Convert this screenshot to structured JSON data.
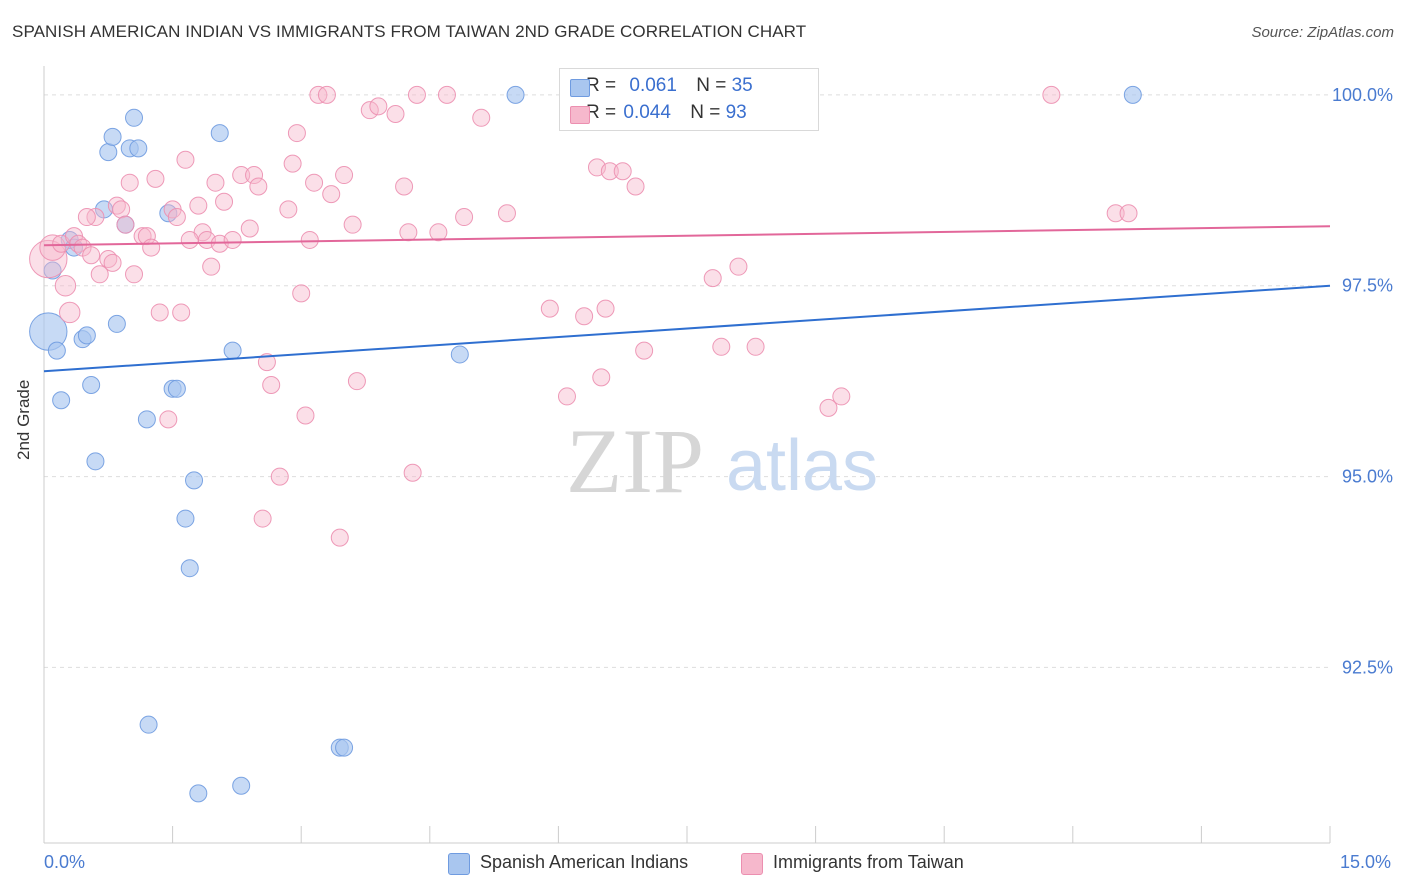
{
  "title": "SPANISH AMERICAN INDIAN VS IMMIGRANTS FROM TAIWAN 2ND GRADE CORRELATION CHART",
  "source": "Source: ZipAtlas.com",
  "watermark": {
    "zip": "ZIP",
    "atlas": "atlas"
  },
  "legend_top": {
    "rows": [
      {
        "r_label": "R =",
        "r_value": "0.061",
        "n_label": "N =",
        "n_value": "35"
      },
      {
        "r_label": "R =",
        "r_value": "0.044",
        "n_label": "N =",
        "n_value": "93"
      }
    ]
  },
  "colors": {
    "blue_fill": "#a9c6ef",
    "blue_stroke": "#6f9be0",
    "blue_line": "#2f6fd0",
    "pink_fill": "#f6b8cc",
    "pink_stroke": "#ec8fb0",
    "pink_line": "#e2679a",
    "tick_text": "#4a7bd0",
    "grid": "#dddddd"
  },
  "chart_data": {
    "type": "scatter",
    "title": "SPANISH AMERICAN INDIAN VS IMMIGRANTS FROM TAIWAN 2ND GRADE CORRELATION CHART",
    "xlabel": "",
    "ylabel": "2nd Grade",
    "xlim": [
      0,
      15
    ],
    "ylim": [
      90.2,
      100.3
    ],
    "x_tick_labels": [
      "0.0%",
      "15.0%"
    ],
    "y_ticks": [
      92.5,
      95.0,
      97.5,
      100.0
    ],
    "y_tick_labels": [
      "92.5%",
      "95.0%",
      "97.5%",
      "100.0%"
    ],
    "series": [
      {
        "name": "Spanish American Indians",
        "color": "blue",
        "r": 0.061,
        "n": 35,
        "trend": {
          "x": [
            0,
            15
          ],
          "y": [
            96.38,
            97.5
          ]
        },
        "points": [
          [
            0.05,
            96.9,
            2.2
          ],
          [
            0.1,
            97.7,
            1
          ],
          [
            0.15,
            96.65,
            1
          ],
          [
            0.2,
            96.0,
            1
          ],
          [
            0.3,
            98.1,
            1
          ],
          [
            0.35,
            98.0,
            1
          ],
          [
            0.45,
            96.8,
            1
          ],
          [
            0.5,
            96.85,
            1
          ],
          [
            0.55,
            96.2,
            1
          ],
          [
            0.6,
            95.2,
            1
          ],
          [
            0.7,
            98.5,
            1
          ],
          [
            0.75,
            99.25,
            1
          ],
          [
            0.8,
            99.45,
            1
          ],
          [
            0.85,
            97.0,
            1
          ],
          [
            0.95,
            98.3,
            1
          ],
          [
            1.0,
            99.3,
            1
          ],
          [
            1.05,
            99.7,
            1
          ],
          [
            1.1,
            99.3,
            1
          ],
          [
            1.2,
            95.75,
            1
          ],
          [
            1.22,
            91.75,
            1
          ],
          [
            1.45,
            98.45,
            1
          ],
          [
            1.5,
            96.15,
            1
          ],
          [
            1.55,
            96.15,
            1
          ],
          [
            1.65,
            94.45,
            1
          ],
          [
            1.7,
            93.8,
            1
          ],
          [
            1.75,
            94.95,
            1
          ],
          [
            1.8,
            90.85,
            1
          ],
          [
            2.05,
            99.5,
            1
          ],
          [
            2.2,
            96.65,
            1
          ],
          [
            2.3,
            90.95,
            1
          ],
          [
            3.45,
            91.45,
            1
          ],
          [
            3.5,
            91.45,
            1
          ],
          [
            4.85,
            96.6,
            1
          ],
          [
            5.5,
            100.0,
            1
          ],
          [
            12.7,
            100.0,
            1
          ]
        ]
      },
      {
        "name": "Immigrants from Taiwan",
        "color": "pink",
        "r": 0.044,
        "n": 93,
        "trend": {
          "x": [
            0,
            15
          ],
          "y": [
            98.03,
            98.28
          ]
        },
        "points": [
          [
            0.05,
            97.85,
            2.2
          ],
          [
            0.1,
            98.0,
            1.5
          ],
          [
            0.2,
            98.05,
            1
          ],
          [
            0.25,
            97.5,
            1.2
          ],
          [
            0.3,
            97.15,
            1.2
          ],
          [
            0.35,
            98.15,
            1
          ],
          [
            0.4,
            98.05,
            1
          ],
          [
            0.45,
            98.0,
            1
          ],
          [
            0.55,
            97.9,
            1
          ],
          [
            0.6,
            98.4,
            1
          ],
          [
            0.65,
            97.65,
            1
          ],
          [
            0.75,
            97.85,
            1
          ],
          [
            0.8,
            97.8,
            1
          ],
          [
            0.85,
            98.55,
            1
          ],
          [
            0.9,
            98.5,
            1
          ],
          [
            0.95,
            98.3,
            1
          ],
          [
            1.0,
            98.85,
            1
          ],
          [
            1.05,
            97.65,
            1
          ],
          [
            1.15,
            98.15,
            1
          ],
          [
            1.2,
            98.15,
            1
          ],
          [
            1.25,
            98.0,
            1
          ],
          [
            1.3,
            98.9,
            1
          ],
          [
            1.35,
            97.15,
            1
          ],
          [
            1.45,
            95.75,
            1
          ],
          [
            1.5,
            98.5,
            1
          ],
          [
            1.55,
            98.4,
            1
          ],
          [
            1.6,
            97.15,
            1
          ],
          [
            1.65,
            99.15,
            1
          ],
          [
            1.8,
            98.55,
            1
          ],
          [
            1.85,
            98.2,
            1
          ],
          [
            1.9,
            98.1,
            1
          ],
          [
            1.95,
            97.75,
            1
          ],
          [
            2.0,
            98.85,
            1
          ],
          [
            2.05,
            98.05,
            1
          ],
          [
            2.1,
            98.6,
            1
          ],
          [
            2.2,
            98.1,
            1
          ],
          [
            2.3,
            98.95,
            1
          ],
          [
            2.4,
            98.25,
            1
          ],
          [
            2.45,
            98.95,
            1
          ],
          [
            2.5,
            98.8,
            1
          ],
          [
            2.55,
            94.45,
            1
          ],
          [
            2.6,
            96.5,
            1
          ],
          [
            2.65,
            96.2,
            1
          ],
          [
            2.75,
            95.0,
            1
          ],
          [
            2.85,
            98.5,
            1
          ],
          [
            2.9,
            99.1,
            1
          ],
          [
            2.95,
            99.5,
            1
          ],
          [
            3.0,
            97.4,
            1
          ],
          [
            3.05,
            95.8,
            1
          ],
          [
            3.1,
            98.1,
            1
          ],
          [
            3.15,
            98.85,
            1
          ],
          [
            3.2,
            100.0,
            1
          ],
          [
            3.3,
            100.0,
            1
          ],
          [
            3.35,
            98.7,
            1
          ],
          [
            3.45,
            94.2,
            1
          ],
          [
            3.5,
            98.95,
            1
          ],
          [
            3.6,
            98.3,
            1
          ],
          [
            3.65,
            96.25,
            1
          ],
          [
            3.8,
            99.8,
            1
          ],
          [
            3.9,
            99.85,
            1
          ],
          [
            4.1,
            99.75,
            1
          ],
          [
            4.2,
            98.8,
            1
          ],
          [
            4.25,
            98.2,
            1
          ],
          [
            4.3,
            95.05,
            1
          ],
          [
            4.35,
            100.0,
            1
          ],
          [
            4.6,
            98.2,
            1
          ],
          [
            4.7,
            100.0,
            1
          ],
          [
            4.9,
            98.4,
            1
          ],
          [
            5.1,
            99.7,
            1
          ],
          [
            5.4,
            98.45,
            1
          ],
          [
            5.9,
            97.2,
            1
          ],
          [
            6.1,
            96.05,
            1
          ],
          [
            6.3,
            97.1,
            1
          ],
          [
            6.45,
            99.05,
            1
          ],
          [
            6.5,
            96.3,
            1
          ],
          [
            6.55,
            97.2,
            1
          ],
          [
            6.6,
            99.0,
            1
          ],
          [
            6.75,
            99.0,
            1
          ],
          [
            6.9,
            98.8,
            1
          ],
          [
            7.0,
            96.65,
            1
          ],
          [
            7.15,
            100.0,
            1
          ],
          [
            7.8,
            97.6,
            1
          ],
          [
            7.9,
            96.7,
            1
          ],
          [
            8.1,
            97.75,
            1
          ],
          [
            8.3,
            96.7,
            1
          ],
          [
            9.15,
            95.9,
            1
          ],
          [
            9.3,
            96.05,
            1
          ],
          [
            11.75,
            100.0,
            1
          ],
          [
            12.5,
            98.45,
            1
          ],
          [
            12.65,
            98.45,
            1
          ],
          [
            6.4,
            100.0,
            1
          ],
          [
            0.5,
            98.4,
            1
          ],
          [
            1.7,
            98.1,
            1
          ]
        ]
      }
    ]
  },
  "legend_bottom": [
    {
      "label": "Spanish American Indians"
    },
    {
      "label": "Immigrants from Taiwan"
    }
  ]
}
